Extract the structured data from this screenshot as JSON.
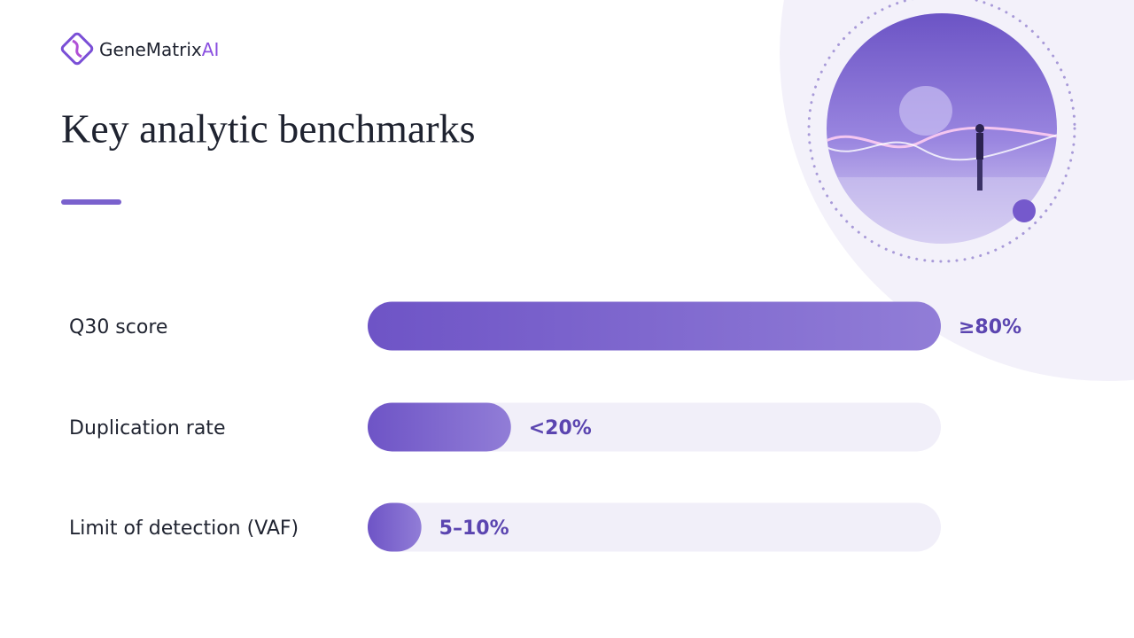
{
  "header": {
    "logo_text": "GeneMatrix",
    "logo_accent": "AI"
  },
  "chart_data": {
    "type": "bar",
    "orientation": "horizontal",
    "title": "Key analytic benchmarks",
    "categories": [
      "Q30 score",
      "Duplication rate",
      "Limit of detection (VAF)"
    ],
    "values": [
      80,
      20,
      7.5
    ],
    "value_labels": [
      "≥80%",
      "<20%",
      "5–10%"
    ],
    "color": "#7a61cd",
    "xlim": [
      0,
      80
    ]
  }
}
